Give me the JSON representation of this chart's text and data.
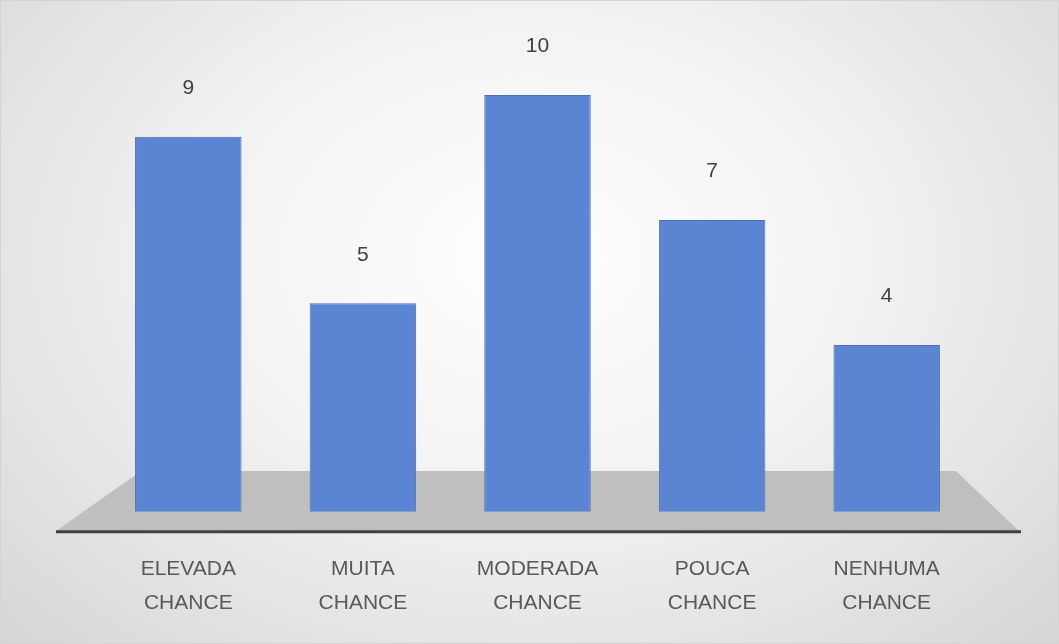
{
  "chart_data": {
    "type": "bar",
    "categories": [
      "ELEVADA CHANCE",
      "MUITA CHANCE",
      "MODERADA CHANCE",
      "POUCA CHANCE",
      "NENHUMA CHANCE"
    ],
    "values": [
      9,
      5,
      10,
      7,
      4
    ],
    "color": "#5b85d2",
    "data_labels": true,
    "grid": false,
    "legend": false
  }
}
